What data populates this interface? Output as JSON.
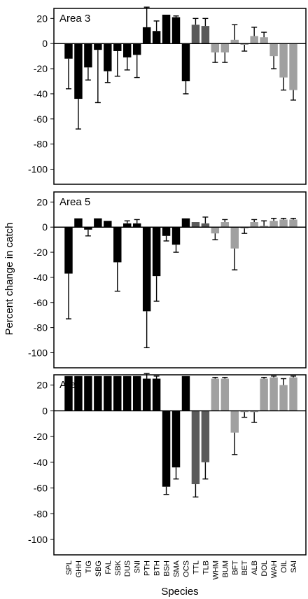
{
  "chart_data": {
    "type": "bar",
    "xlabel": "Species",
    "ylabel": "Percent change in catch",
    "ylim": [
      -100,
      20
    ],
    "yticks": [
      20,
      0,
      -20,
      -40,
      -60,
      -80,
      -100
    ],
    "categories": [
      "SPL",
      "GHH",
      "TIG",
      "SBG",
      "FAL",
      "SBK",
      "DUS",
      "SNI",
      "PTH",
      "BTH",
      "BSH",
      "SMA",
      "OCS",
      "TTL",
      "TLB",
      "WHM",
      "BUM",
      "BFT",
      "BET",
      "ALB",
      "DOL",
      "WAH",
      "OIL",
      "SAI"
    ],
    "group_colors": {
      "black": "#000000",
      "dark_gray": "#5a5a5a",
      "light_gray": "#a0a0a0"
    },
    "bar_groups": [
      "black",
      "black",
      "black",
      "black",
      "black",
      "black",
      "black",
      "black",
      "black",
      "black",
      "black",
      "black",
      "black",
      "dark_gray",
      "dark_gray",
      "light_gray",
      "light_gray",
      "light_gray",
      "light_gray",
      "light_gray",
      "light_gray",
      "light_gray",
      "light_gray",
      "light_gray"
    ],
    "panels": [
      {
        "label": "Area 3",
        "values": [
          -12,
          -44,
          -19,
          -5,
          -22,
          -6,
          -11,
          -9,
          13,
          10,
          23,
          21,
          -30,
          15,
          14,
          -7,
          -7,
          3,
          -1,
          6,
          5,
          -10,
          -27,
          -37
        ],
        "error_top": [
          -36,
          -68,
          -29,
          -47,
          -31,
          -26,
          -21,
          -27,
          29,
          18,
          23,
          22,
          -40,
          20,
          20,
          -15,
          -15,
          15,
          -6,
          13,
          9,
          -20,
          -37,
          -45
        ]
      },
      {
        "label": "Area 5",
        "values": [
          -37,
          7,
          -2,
          7,
          5,
          -28,
          3,
          3,
          -67,
          -39,
          -7,
          -14,
          7,
          4,
          3,
          -5,
          4,
          -17,
          -1,
          4,
          1,
          5,
          6,
          6
        ],
        "error_top": [
          -73,
          7,
          -7,
          7,
          5,
          -51,
          5,
          6,
          -96,
          -59,
          -11,
          -20,
          7,
          4,
          8,
          -10,
          6,
          -34,
          -5,
          6,
          5,
          7,
          7,
          7
        ]
      },
      {
        "label": "Area 7",
        "values": [
          27,
          27,
          27,
          27,
          27,
          27,
          27,
          27,
          25,
          25,
          -59,
          -44,
          27,
          -57,
          -40,
          25,
          25,
          -17,
          -1,
          -1,
          25,
          26,
          20,
          26
        ],
        "error_top": [
          27,
          27,
          27,
          27,
          27,
          27,
          27,
          27,
          29,
          27,
          -65,
          -53,
          27,
          -67,
          -53,
          26,
          26,
          -34,
          -5,
          -9,
          26,
          27,
          25,
          27
        ]
      }
    ]
  }
}
